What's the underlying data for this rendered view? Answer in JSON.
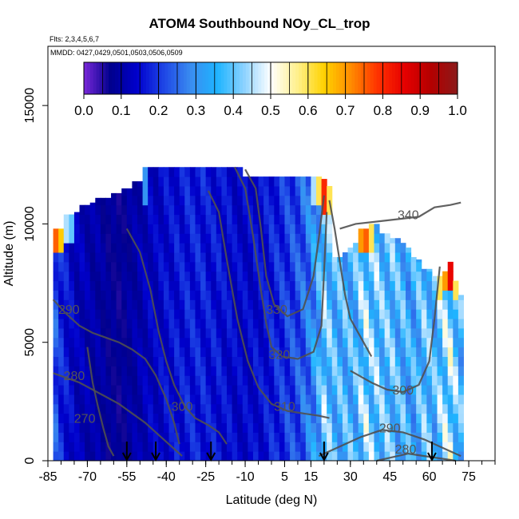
{
  "chart_data": {
    "type": "heatmap",
    "title": "ATOM4 Southbound NOy_CL_trop",
    "flights_note": "Flts: 2,3,4,5,6,7",
    "dates_note": "MMDD: 0427,0429,0501,0503,0506,0509",
    "xlabel": "Latitude (deg N)",
    "ylabel": "Altitude (m)",
    "xlim": [
      -85,
      85
    ],
    "ylim": [
      0,
      17500
    ],
    "x_ticks": [
      "-85",
      "-70",
      "-55",
      "-40",
      "-25",
      "-10",
      "5",
      "15",
      "30",
      "45",
      "60",
      "75"
    ],
    "x_tick_values": [
      -85,
      -70,
      -55,
      -40,
      -25,
      -10,
      5,
      15,
      30,
      45,
      60,
      75
    ],
    "x_minor_step": 5,
    "y_ticks": [
      "0",
      "5000",
      "10000",
      "15000"
    ],
    "y_tick_values": [
      0,
      5000,
      10000,
      15000
    ],
    "colorbar": {
      "min": 0.0,
      "max": 1.0,
      "labels": [
        "0.0",
        "0.1",
        "0.2",
        "0.3",
        "0.4",
        "0.5",
        "0.6",
        "0.7",
        "0.8",
        "0.9",
        "1.0"
      ],
      "stops": [
        "#7a28d8",
        "#00008c",
        "#0000cd",
        "#1e46e6",
        "#3a8cf0",
        "#1eb4ff",
        "#8cd2ff",
        "#ffffff",
        "#fff08c",
        "#ffd200",
        "#ff8c00",
        "#ff3200",
        "#e60000",
        "#b40000",
        "#8b1a1a"
      ]
    },
    "data_columns": [
      {
        "x": -82,
        "top": 9800,
        "value": 0.22,
        "hot_top": 0.75
      },
      {
        "x": -80,
        "top": 9800,
        "value": 0.18,
        "hot_top": 0.65
      },
      {
        "x": -78,
        "top": 10400,
        "value": 0.16,
        "hot_top": 0.45
      },
      {
        "x": -76,
        "top": 10400,
        "value": 0.14,
        "hot_top": 0.4
      },
      {
        "x": -74,
        "top": 10500,
        "value": 0.12
      },
      {
        "x": -72,
        "top": 10800,
        "value": 0.12
      },
      {
        "x": -70,
        "top": 10800,
        "value": 0.11
      },
      {
        "x": -68,
        "top": 10900,
        "value": 0.1
      },
      {
        "x": -66,
        "top": 11100,
        "value": 0.1
      },
      {
        "x": -64,
        "top": 11100,
        "value": 0.09
      },
      {
        "x": -62,
        "top": 11100,
        "value": 0.08
      },
      {
        "x": -60,
        "top": 11300,
        "value": 0.08
      },
      {
        "x": -58,
        "top": 11300,
        "value": 0.07
      },
      {
        "x": -56,
        "top": 11500,
        "value": 0.08
      },
      {
        "x": -54,
        "top": 11500,
        "value": 0.09
      },
      {
        "x": -52,
        "top": 11800,
        "value": 0.1
      },
      {
        "x": -50,
        "top": 11800,
        "value": 0.11
      },
      {
        "x": -48,
        "top": 12400,
        "value": 0.12,
        "hot_top": 0.3
      },
      {
        "x": -46,
        "top": 12400,
        "value": 0.13
      },
      {
        "x": -44,
        "top": 12400,
        "value": 0.13
      },
      {
        "x": -42,
        "top": 12400,
        "value": 0.14
      },
      {
        "x": -40,
        "top": 12400,
        "value": 0.15
      },
      {
        "x": -38,
        "top": 12400,
        "value": 0.15
      },
      {
        "x": -36,
        "top": 12400,
        "value": 0.16
      },
      {
        "x": -34,
        "top": 12400,
        "value": 0.16
      },
      {
        "x": -32,
        "top": 12400,
        "value": 0.17
      },
      {
        "x": -30,
        "top": 12400,
        "value": 0.17
      },
      {
        "x": -28,
        "top": 12400,
        "value": 0.17
      },
      {
        "x": -26,
        "top": 12400,
        "value": 0.17
      },
      {
        "x": -24,
        "top": 12400,
        "value": 0.16
      },
      {
        "x": -22,
        "top": 12400,
        "value": 0.16
      },
      {
        "x": -20,
        "top": 12400,
        "value": 0.16
      },
      {
        "x": -18,
        "top": 12400,
        "value": 0.15
      },
      {
        "x": -16,
        "top": 12400,
        "value": 0.15
      },
      {
        "x": -14,
        "top": 12400,
        "value": 0.14
      },
      {
        "x": -12,
        "top": 12400,
        "value": 0.14
      },
      {
        "x": -10,
        "top": 12000,
        "value": 0.14
      },
      {
        "x": -8,
        "top": 12000,
        "value": 0.14
      },
      {
        "x": -6,
        "top": 12000,
        "value": 0.15
      },
      {
        "x": -4,
        "top": 12000,
        "value": 0.15
      },
      {
        "x": -2,
        "top": 12000,
        "value": 0.16
      },
      {
        "x": 0,
        "top": 12000,
        "value": 0.17
      },
      {
        "x": 2,
        "top": 12000,
        "value": 0.18
      },
      {
        "x": 4,
        "top": 12000,
        "value": 0.19
      },
      {
        "x": 6,
        "top": 12000,
        "value": 0.2
      },
      {
        "x": 8,
        "top": 12000,
        "value": 0.21
      },
      {
        "x": 10,
        "top": 12000,
        "value": 0.22
      },
      {
        "x": 12,
        "top": 12000,
        "value": 0.24
      },
      {
        "x": 14,
        "top": 12000,
        "value": 0.26
      },
      {
        "x": 16,
        "top": 12000,
        "value": 0.3,
        "hot_top": 0.45
      },
      {
        "x": 18,
        "top": 12000,
        "value": 0.34,
        "hot_top": 0.6
      },
      {
        "x": 20,
        "top": 11900,
        "value": 0.4,
        "hot_top": 0.8
      },
      {
        "x": 22,
        "top": 11600,
        "value": 0.38,
        "hot_top": 0.6
      },
      {
        "x": 24,
        "top": 8600,
        "value": 0.36
      },
      {
        "x": 26,
        "top": 8600,
        "value": 0.36
      },
      {
        "x": 28,
        "top": 8800,
        "value": 0.36
      },
      {
        "x": 30,
        "top": 9000,
        "value": 0.36
      },
      {
        "x": 32,
        "top": 9200,
        "value": 0.36
      },
      {
        "x": 34,
        "top": 9800,
        "value": 0.4,
        "hot_top": 0.7
      },
      {
        "x": 36,
        "top": 9800,
        "value": 0.42,
        "hot_top": 0.75
      },
      {
        "x": 38,
        "top": 10000,
        "value": 0.4,
        "hot_top": 0.6
      },
      {
        "x": 40,
        "top": 10000,
        "value": 0.4
      },
      {
        "x": 42,
        "top": 9600,
        "value": 0.38
      },
      {
        "x": 44,
        "top": 9600,
        "value": 0.38
      },
      {
        "x": 46,
        "top": 9400,
        "value": 0.38
      },
      {
        "x": 48,
        "top": 9400,
        "value": 0.36
      },
      {
        "x": 50,
        "top": 9200,
        "value": 0.36
      },
      {
        "x": 52,
        "top": 9000,
        "value": 0.34
      },
      {
        "x": 54,
        "top": 8600,
        "value": 0.34
      },
      {
        "x": 56,
        "top": 8500,
        "value": 0.36
      },
      {
        "x": 58,
        "top": 8100,
        "value": 0.38
      },
      {
        "x": 60,
        "top": 8100,
        "value": 0.38
      },
      {
        "x": 62,
        "top": 7800,
        "value": 0.36
      },
      {
        "x": 64,
        "top": 7800,
        "value": 0.4,
        "hot_top": 0.6
      },
      {
        "x": 66,
        "top": 8000,
        "value": 0.42,
        "hot_top": 0.7
      },
      {
        "x": 68,
        "top": 8400,
        "value": 0.44,
        "hot_top": 0.85
      },
      {
        "x": 70,
        "top": 7600,
        "value": 0.4,
        "hot_top": 0.6
      },
      {
        "x": 72,
        "top": 7000,
        "value": 0.36
      }
    ],
    "contours": [
      {
        "label": "270",
        "label_at": [
          -71,
          1600
        ],
        "points": [
          [
            -70,
            4800
          ],
          [
            -68,
            3300
          ],
          [
            -66,
            2300
          ],
          [
            -64,
            1400
          ],
          [
            -62,
            600
          ],
          [
            -60,
            200
          ]
        ]
      },
      {
        "label": "280",
        "label_at": [
          -75,
          3400
        ],
        "points": [
          [
            -83,
            3700
          ],
          [
            -78,
            3500
          ],
          [
            -73,
            3300
          ],
          [
            -68,
            3000
          ],
          [
            -63,
            2700
          ],
          [
            -58,
            2400
          ],
          [
            -53,
            2000
          ],
          [
            -48,
            1600
          ],
          [
            -43,
            1100
          ],
          [
            -38,
            600
          ],
          [
            -34,
            200
          ]
        ]
      },
      {
        "label": "290",
        "label_at": [
          -77,
          6200
        ],
        "points": [
          [
            -83,
            6800
          ],
          [
            -78,
            6200
          ],
          [
            -73,
            5700
          ],
          [
            -68,
            5400
          ],
          [
            -63,
            5200
          ],
          [
            -58,
            5000
          ],
          [
            -53,
            4700
          ],
          [
            -48,
            4300
          ],
          [
            -44,
            3600
          ],
          [
            -40,
            2600
          ],
          [
            -37,
            1600
          ],
          [
            -35,
            700
          ]
        ]
      },
      {
        "label": "300",
        "label_at": [
          -34,
          2100
        ],
        "points": [
          [
            -55,
            9800
          ],
          [
            -50,
            8800
          ],
          [
            -46,
            7200
          ],
          [
            -43,
            5500
          ],
          [
            -40,
            4200
          ],
          [
            -37,
            3200
          ],
          [
            -33,
            2300
          ],
          [
            -29,
            1800
          ],
          [
            -24,
            1500
          ],
          [
            -20,
            1200
          ],
          [
            -17,
            700
          ]
        ]
      },
      {
        "label": "310",
        "label_at": [
          5,
          2100
        ],
        "points": [
          [
            -24,
            11400
          ],
          [
            -20,
            10500
          ],
          [
            -17,
            8500
          ],
          [
            -13,
            6000
          ],
          [
            -9,
            4200
          ],
          [
            -5,
            3100
          ],
          [
            0,
            2400
          ],
          [
            6,
            2100
          ],
          [
            12,
            2000
          ],
          [
            18,
            1900
          ],
          [
            22,
            1800
          ]
        ]
      },
      {
        "label": "320",
        "label_at": [
          3,
          4300
        ],
        "points": [
          [
            -14,
            12400
          ],
          [
            -10,
            11500
          ],
          [
            -7,
            9500
          ],
          [
            -4,
            7200
          ],
          [
            -2,
            5800
          ],
          [
            0,
            4800
          ],
          [
            4,
            4400
          ],
          [
            10,
            4300
          ],
          [
            16,
            4600
          ],
          [
            19,
            5700
          ],
          [
            20,
            8000
          ],
          [
            21,
            10500
          ]
        ]
      },
      {
        "label": "330",
        "label_at": [
          2,
          6200
        ],
        "points": [
          [
            -10,
            12300
          ],
          [
            -6,
            11500
          ],
          [
            -4,
            9800
          ],
          [
            -2,
            7800
          ],
          [
            1,
            6600
          ],
          [
            6,
            6100
          ],
          [
            12,
            6400
          ],
          [
            16,
            7800
          ],
          [
            18,
            9400
          ],
          [
            20,
            11200
          ]
        ]
      },
      {
        "label": "340",
        "label_at": [
          52,
          10200
        ],
        "points": [
          [
            26,
            9800
          ],
          [
            32,
            10000
          ],
          [
            40,
            10100
          ],
          [
            48,
            10200
          ],
          [
            56,
            10300
          ],
          [
            62,
            10700
          ],
          [
            68,
            10800
          ],
          [
            72,
            10900
          ]
        ]
      },
      {
        "label": "290",
        "label_at": [
          45,
          1200
        ],
        "points": [
          [
            18,
            200
          ],
          [
            26,
            600
          ],
          [
            34,
            1000
          ],
          [
            42,
            1300
          ],
          [
            50,
            1200
          ],
          [
            58,
            900
          ],
          [
            66,
            500
          ],
          [
            72,
            200
          ]
        ]
      },
      {
        "label": "280",
        "label_at": [
          51,
          300
        ],
        "points": [
          [
            40,
            0
          ],
          [
            46,
            150
          ],
          [
            52,
            300
          ],
          [
            58,
            200
          ],
          [
            64,
            100
          ],
          [
            70,
            0
          ]
        ]
      },
      {
        "label": "300",
        "label_at": [
          50,
          2800
        ],
        "points": [
          [
            30,
            3800
          ],
          [
            38,
            3300
          ],
          [
            44,
            3000
          ],
          [
            50,
            2900
          ],
          [
            56,
            3200
          ],
          [
            60,
            4200
          ],
          [
            62,
            6000
          ],
          [
            64,
            8200
          ]
        ]
      },
      {
        "label": "",
        "points": [
          [
            22,
            11000
          ],
          [
            24,
            9800
          ],
          [
            26,
            8400
          ],
          [
            28,
            7000
          ],
          [
            30,
            6000
          ],
          [
            34,
            5200
          ],
          [
            38,
            4400
          ]
        ]
      }
    ],
    "arrows": [
      {
        "x": -55
      },
      {
        "x": -44
      },
      {
        "x": -23
      },
      {
        "x": 20
      },
      {
        "x": 61
      }
    ]
  }
}
